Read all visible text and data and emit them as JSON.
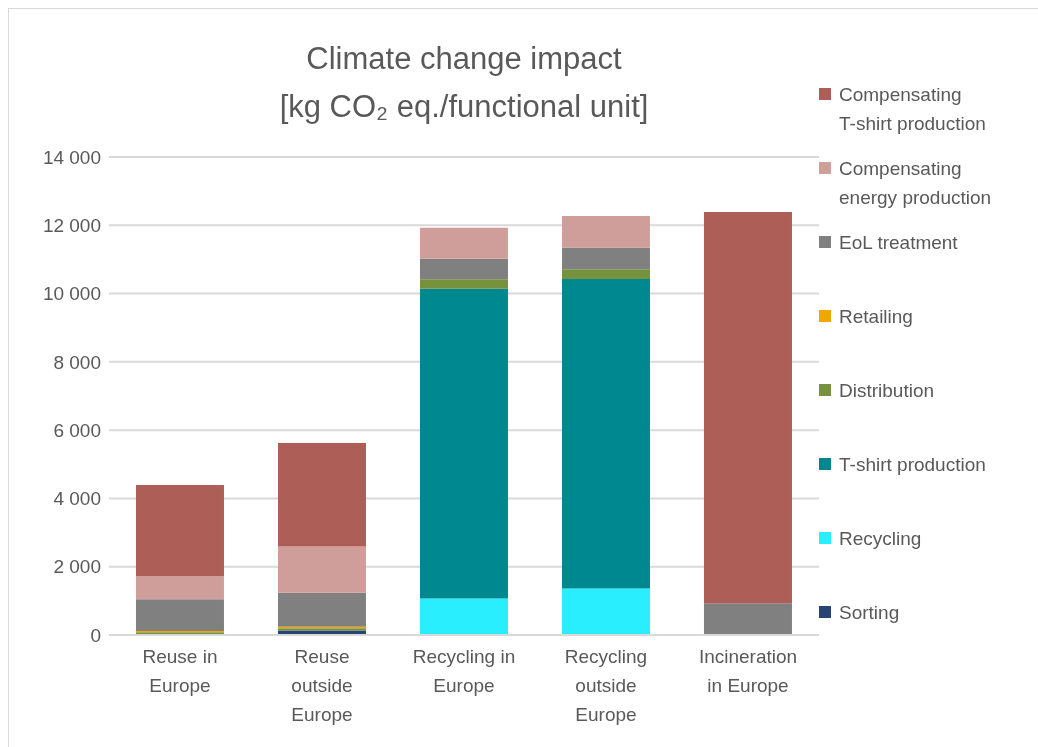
{
  "chart_data": {
    "type": "bar",
    "title": "Climate change impact",
    "subtitle": "[kg CO₂ eq./functional unit]",
    "stacked": true,
    "categories": [
      "Reuse in Europe",
      "Reuse outside Europe",
      "Recycling in Europe",
      "Recycling outside Europe",
      "Incineration in Europe"
    ],
    "series": [
      {
        "name": "Sorting",
        "color": "#264478",
        "values": [
          20,
          130,
          null,
          null,
          0
        ]
      },
      {
        "name": "Recycling",
        "color": "#29eefe",
        "values": [
          0,
          0,
          1070,
          1360,
          0
        ]
      },
      {
        "name": "T-shirt production",
        "color": "#008890",
        "values": [
          0,
          0,
          9070,
          9070,
          0
        ]
      },
      {
        "name": "Distribution",
        "color": "#76923c",
        "values": [
          60,
          70,
          280,
          280,
          0
        ]
      },
      {
        "name": "Retailing",
        "color": "#f0a800",
        "values": [
          40,
          40,
          0,
          0,
          0
        ]
      },
      {
        "name": "EoL treatment",
        "color": "#808080",
        "values": [
          930,
          1000,
          600,
          630,
          930
        ]
      },
      {
        "name": "Compensating energy production",
        "color": "#d09e9a",
        "values": [
          680,
          1350,
          910,
          930,
          0
        ]
      },
      {
        "name": "Compensating T-shirt production",
        "color": "#ad5e57",
        "values": [
          2660,
          3030,
          0,
          0,
          11460
        ]
      }
    ],
    "ylim": [
      0,
      14000
    ],
    "yticks": [
      0,
      {
        "value": 2000,
        "label": "2 000"
      },
      {
        "value": 4000,
        "label": "4 000"
      },
      {
        "value": 6000,
        "label": "6 000"
      },
      {
        "value": 8000,
        "label": "8 000"
      },
      {
        "value": 10000,
        "label": "10 000"
      },
      {
        "value": 12000,
        "label": "12 000"
      },
      {
        "value": 14000,
        "label": "14 000"
      }
    ],
    "grid": "y",
    "legend": "right"
  }
}
